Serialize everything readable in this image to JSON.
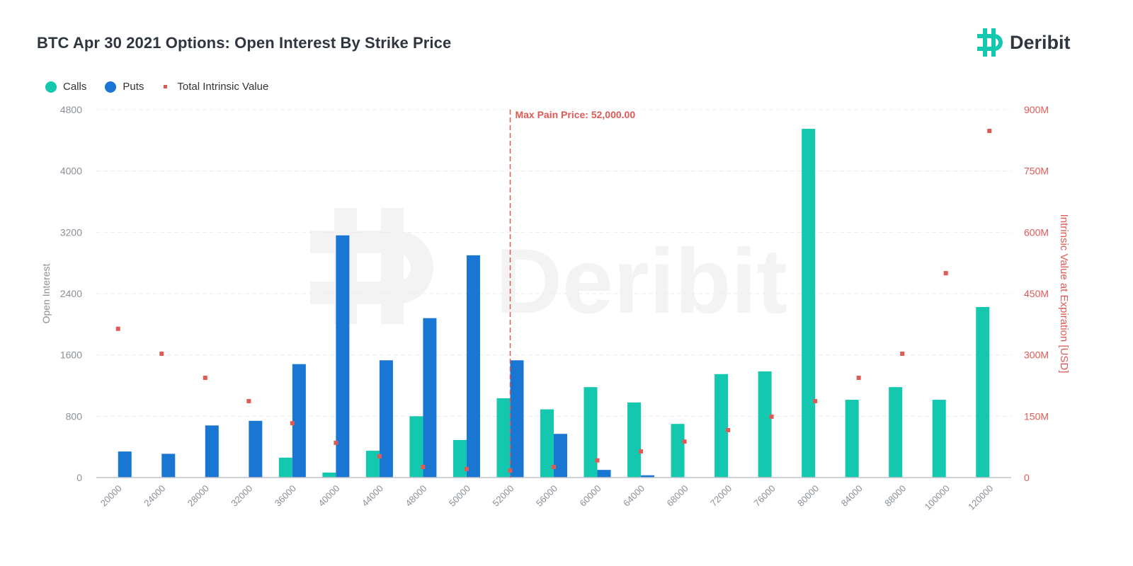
{
  "header": {
    "title": "BTC Apr 30 2021 Options: Open Interest By Strike Price",
    "logo_text": "Deribit"
  },
  "legend": [
    {
      "label": "Calls",
      "color": "#14c8b0",
      "shape": "circle"
    },
    {
      "label": "Puts",
      "color": "#1976d2",
      "shape": "circle"
    },
    {
      "label": "Total Intrinsic Value",
      "color": "#e05a55",
      "shape": "square"
    }
  ],
  "annotation": {
    "label": "Max Pain Price: 52,000.00",
    "strike": "52000",
    "color": "#e05a55"
  },
  "watermark": "Deribit",
  "chart_data": {
    "type": "bar",
    "title": "BTC Apr 30 2021 Options: Open Interest By Strike Price",
    "xlabel": "",
    "ylabel": "Open Interest",
    "y2label": "Intrinsic Value at Expiration [USD]",
    "ylim": [
      0,
      4800
    ],
    "y2lim": [
      0,
      900000000
    ],
    "yticks": [
      "0",
      "800",
      "1600",
      "2400",
      "3200",
      "4000",
      "4800"
    ],
    "y2ticks": [
      "0",
      "150M",
      "300M",
      "450M",
      "600M",
      "750M",
      "900M"
    ],
    "grid": true,
    "legend_position": "top-left",
    "categories": [
      "20000",
      "24000",
      "28000",
      "32000",
      "36000",
      "40000",
      "44000",
      "48000",
      "50000",
      "52000",
      "56000",
      "60000",
      "64000",
      "68000",
      "72000",
      "76000",
      "80000",
      "84000",
      "88000",
      "100000",
      "120000"
    ],
    "series": [
      {
        "name": "Calls",
        "type": "bar",
        "axis": "left",
        "color": "#14c8b0",
        "values": [
          0,
          0,
          0,
          0,
          260,
          65,
          350,
          800,
          490,
          1035,
          890,
          1180,
          980,
          700,
          1350,
          1385,
          4550,
          1015,
          1180,
          1015,
          2225
        ]
      },
      {
        "name": "Puts",
        "type": "bar",
        "axis": "left",
        "color": "#1976d2",
        "values": [
          340,
          310,
          680,
          740,
          1480,
          3160,
          1530,
          2080,
          2900,
          1530,
          570,
          100,
          30,
          0,
          0,
          0,
          0,
          0,
          0,
          0,
          0
        ]
      },
      {
        "name": "Total Intrinsic Value",
        "type": "scatter",
        "axis": "right",
        "color": "#e05a55",
        "values": [
          364000000,
          303000000,
          244000000,
          187000000,
          133000000,
          85000000,
          52000000,
          26000000,
          21000000,
          17000000,
          26000000,
          42000000,
          64000000,
          88000000,
          116000000,
          149000000,
          187000000,
          244000000,
          303000000,
          500000000,
          848000000
        ]
      }
    ],
    "annotations": [
      {
        "type": "vline",
        "x": "52000",
        "label": "Max Pain Price: 52,000.00"
      }
    ]
  }
}
